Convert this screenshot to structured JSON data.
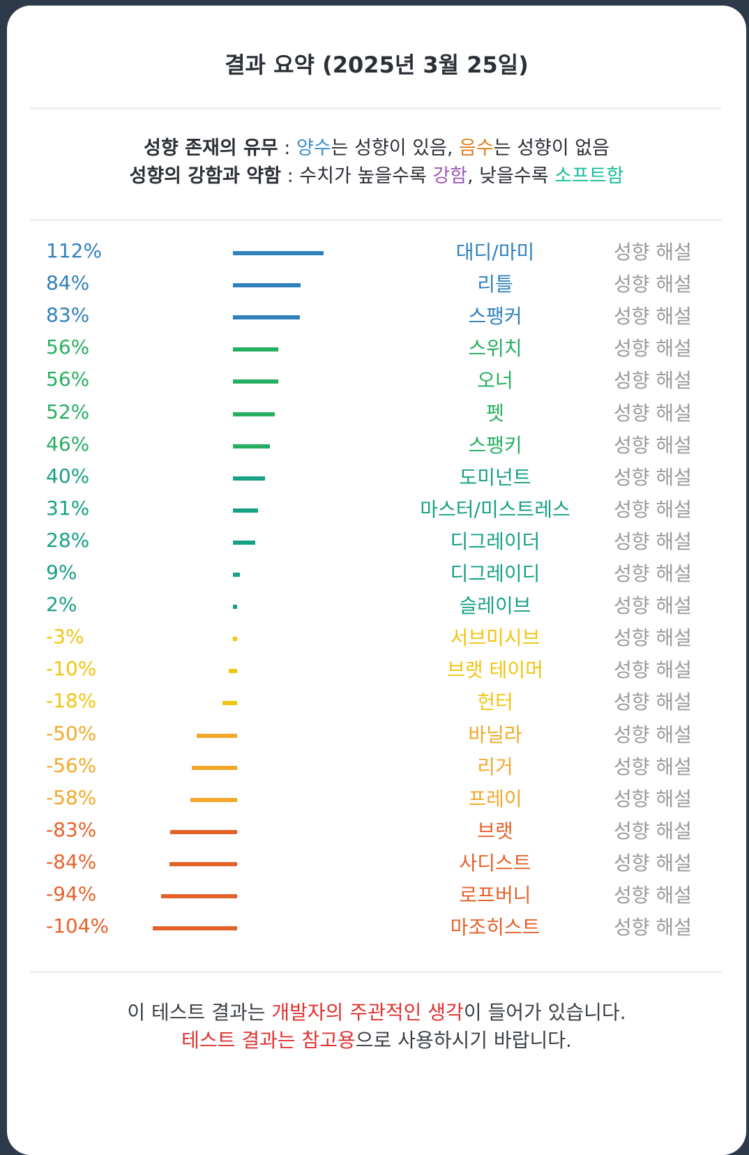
{
  "title": "결과 요약 (2025년 3월 25일)",
  "legend": {
    "line1": {
      "label": "성향 존재의 유무",
      "sep": " : ",
      "positive": "양수",
      "text1": "는 성향이 있음, ",
      "negative": "음수",
      "text2": "는 성향이 없음"
    },
    "line2": {
      "label": "성향의 강함과 약함",
      "sep": " : ",
      "text1": "수치가 높을수록 ",
      "strong": "강함",
      "text2": ", 낮을수록 ",
      "soft": "소프트함"
    }
  },
  "colors": {
    "positive": "#3a8fd0",
    "negative": "#e08020",
    "strong": "#9b59b6",
    "soft": "#1abc9c",
    "red": "#e03030"
  },
  "link_label": "성향 해설",
  "results": [
    {
      "pct": "112%",
      "value": 112,
      "name": "대디/마미",
      "color": "#2f80bd"
    },
    {
      "pct": "84%",
      "value": 84,
      "name": "리틀",
      "color": "#2f80bd"
    },
    {
      "pct": "83%",
      "value": 83,
      "name": "스팽커",
      "color": "#2f80bd"
    },
    {
      "pct": "56%",
      "value": 56,
      "name": "스위치",
      "color": "#27ae60"
    },
    {
      "pct": "56%",
      "value": 56,
      "name": "오너",
      "color": "#27ae60"
    },
    {
      "pct": "52%",
      "value": 52,
      "name": "펫",
      "color": "#27ae60"
    },
    {
      "pct": "46%",
      "value": 46,
      "name": "스팽키",
      "color": "#27ae60"
    },
    {
      "pct": "40%",
      "value": 40,
      "name": "도미넌트",
      "color": "#16a085"
    },
    {
      "pct": "31%",
      "value": 31,
      "name": "마스터/미스트레스",
      "color": "#16a085"
    },
    {
      "pct": "28%",
      "value": 28,
      "name": "디그레이더",
      "color": "#16a085"
    },
    {
      "pct": "9%",
      "value": 9,
      "name": "디그레이디",
      "color": "#16a085"
    },
    {
      "pct": "2%",
      "value": 2,
      "name": "슬레이브",
      "color": "#16a085"
    },
    {
      "pct": "-3%",
      "value": -3,
      "name": "서브미시브",
      "color": "#f1c40f"
    },
    {
      "pct": "-10%",
      "value": -10,
      "name": "브랫 테이머",
      "color": "#f1c40f"
    },
    {
      "pct": "-18%",
      "value": -18,
      "name": "헌터",
      "color": "#f1c40f"
    },
    {
      "pct": "-50%",
      "value": -50,
      "name": "바닐라",
      "color": "#f0a82a"
    },
    {
      "pct": "-56%",
      "value": -56,
      "name": "리거",
      "color": "#f0a82a"
    },
    {
      "pct": "-58%",
      "value": -58,
      "name": "프레이",
      "color": "#f0a82a"
    },
    {
      "pct": "-83%",
      "value": -83,
      "name": "브랫",
      "color": "#e4622a"
    },
    {
      "pct": "-84%",
      "value": -84,
      "name": "사디스트",
      "color": "#e4622a"
    },
    {
      "pct": "-94%",
      "value": -94,
      "name": "로프버니",
      "color": "#e4622a"
    },
    {
      "pct": "-104%",
      "value": -104,
      "name": "마조히스트",
      "color": "#e4622a"
    }
  ],
  "footer": {
    "line1_a": "이 테스트 결과는 ",
    "line1_red": "개발자의 주관적인 생각",
    "line1_b": "이 들어가 있습니다.",
    "line2_red": "테스트 결과는 참고용",
    "line2_b": "으로 사용하시기 바랍니다."
  }
}
